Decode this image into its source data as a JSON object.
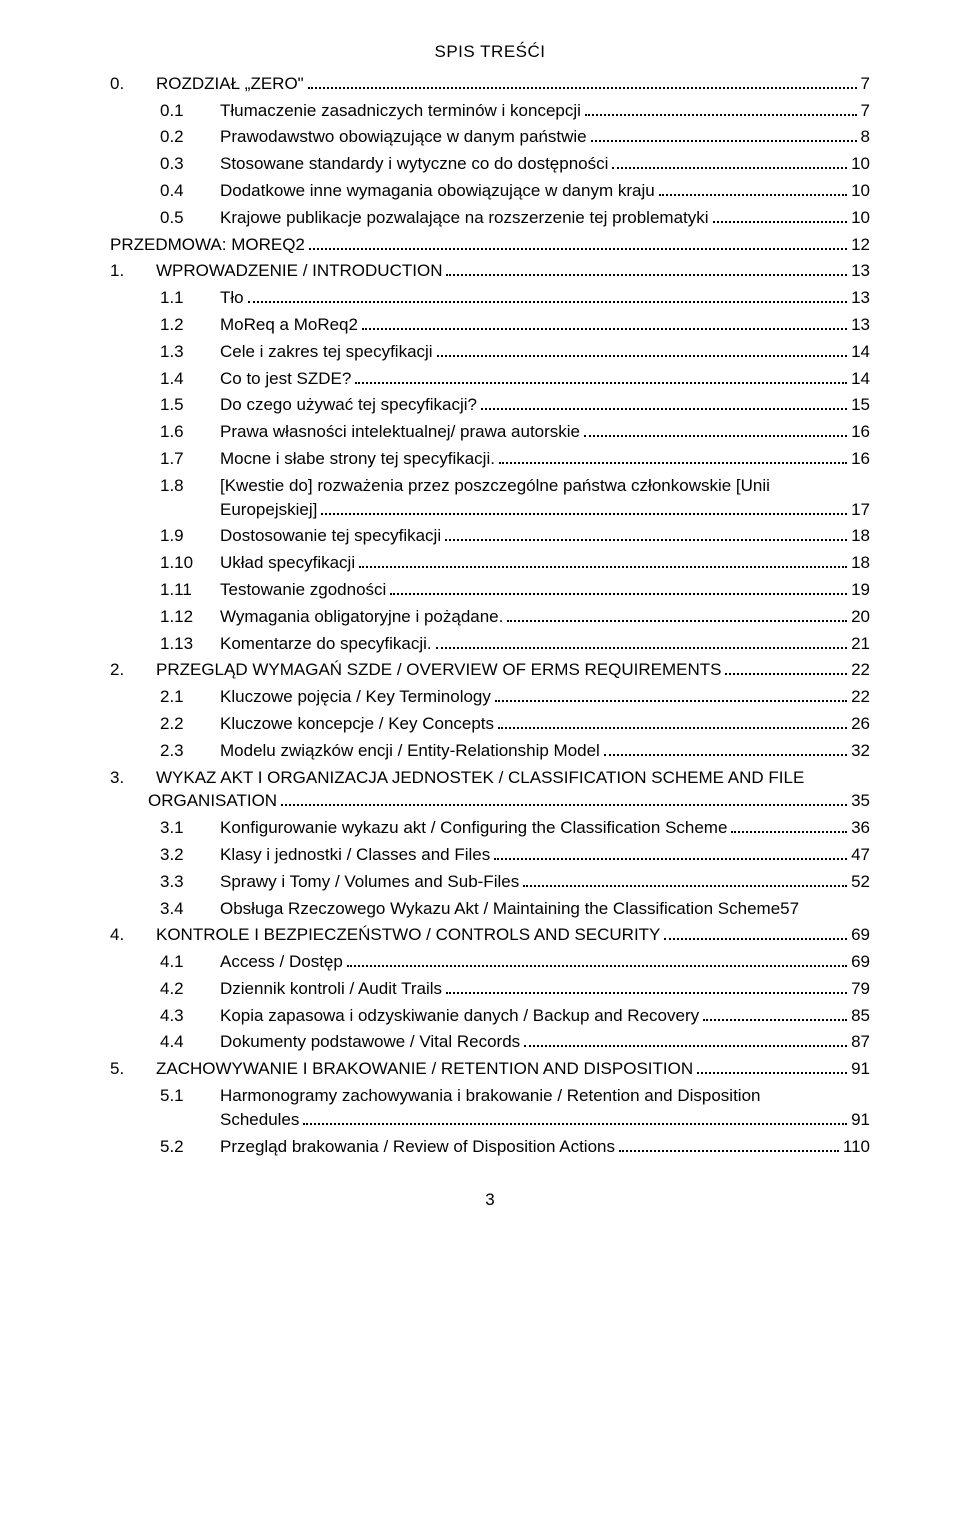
{
  "title": "SPIS TREŚĆI",
  "page_number": "3",
  "typography": {
    "font_family": "Arial",
    "font_size_pt": 12,
    "color": "#000000",
    "background": "#ffffff"
  },
  "entries": [
    {
      "level": 0,
      "num": "0.",
      "label": "ROZDZIAŁ „ZERO\"",
      "page": "7"
    },
    {
      "level": 1,
      "num": "0.1",
      "label": "Tłumaczenie zasadniczych terminów i koncepcji",
      "page": "7"
    },
    {
      "level": 1,
      "num": "0.2",
      "label": "Prawodawstwo obowiązujące w danym państwie",
      "page": "8"
    },
    {
      "level": 1,
      "num": "0.3",
      "label": "Stosowane standardy i wytyczne co do dostępności",
      "page": "10"
    },
    {
      "level": 1,
      "num": "0.4",
      "label": "Dodatkowe inne wymagania obowiązujące w danym kraju",
      "page": "10"
    },
    {
      "level": 1,
      "num": "0.5",
      "label": "Krajowe publikacje pozwalające na rozszerzenie tej problematyki",
      "page": "10"
    },
    {
      "level": 0,
      "num": "",
      "label": "PRZEDMOWA: MOREQ2",
      "page": "12"
    },
    {
      "level": 0,
      "num": "1.",
      "label": "WPROWADZENIE / INTRODUCTION",
      "page": "13"
    },
    {
      "level": 1,
      "num": "1.1",
      "label": "Tło",
      "page": "13"
    },
    {
      "level": 1,
      "num": "1.2",
      "label": "MoReq a MoReq2",
      "page": "13"
    },
    {
      "level": 1,
      "num": "1.3",
      "label": "Cele i zakres tej specyfikacji",
      "page": "14"
    },
    {
      "level": 1,
      "num": "1.4",
      "label": "Co to jest SZDE?",
      "page": "14"
    },
    {
      "level": 1,
      "num": "1.5",
      "label": "Do czego używać tej specyfikacji?",
      "page": "15"
    },
    {
      "level": 1,
      "num": "1.6",
      "label": "Prawa własności intelektualnej/ prawa autorskie",
      "page": "16"
    },
    {
      "level": 1,
      "num": "1.7",
      "label": "Mocne i słabe strony tej specyfikacji.",
      "page": "16"
    },
    {
      "level": 1,
      "num": "1.8",
      "label_line1": "[Kwestie do] rozważenia przez poszczególne państwa członkowskie [Unii",
      "label_line2": "Europejskiej]",
      "page": "17",
      "wrap": true
    },
    {
      "level": 1,
      "num": "1.9",
      "label": "Dostosowanie tej specyfikacji",
      "page": "18"
    },
    {
      "level": 1,
      "num": "1.10",
      "label": "Układ specyfikacji",
      "page": "18"
    },
    {
      "level": 1,
      "num": "1.11",
      "label": "Testowanie zgodności",
      "page": "19"
    },
    {
      "level": 1,
      "num": "1.12",
      "label": "Wymagania obligatoryjne i pożądane.",
      "page": "20"
    },
    {
      "level": 1,
      "num": "1.13",
      "label": "Komentarze do specyfikacji.",
      "page": "21"
    },
    {
      "level": 0,
      "num": "2.",
      "label": "PRZEGLĄD WYMAGAŃ SZDE / OVERVIEW OF ERMS REQUIREMENTS",
      "page": "22"
    },
    {
      "level": 1,
      "num": "2.1",
      "label": "Kluczowe pojęcia / Key Terminology",
      "page": "22"
    },
    {
      "level": 1,
      "num": "2.2",
      "label": "Kluczowe koncepcje / Key Concepts",
      "page": "26"
    },
    {
      "level": 1,
      "num": "2.3",
      "label": "Modelu związków encji / Entity-Relationship Model",
      "page": "32"
    },
    {
      "level": 0,
      "num": "3.",
      "label_line1": "WYKAZ AKT I ORGANIZACJA JEDNOSTEK / CLASSIFICATION SCHEME AND FILE",
      "label_line2": "ORGANISATION",
      "page": "35",
      "wrap": true,
      "wrap_indent": 38
    },
    {
      "level": 1,
      "num": "3.1",
      "label": "Konfigurowanie wykazu akt / Configuring the Classification Scheme",
      "page": "36"
    },
    {
      "level": 1,
      "num": "3.2",
      "label": "Klasy i jednostki / Classes and Files",
      "page": "47"
    },
    {
      "level": 1,
      "num": "3.3",
      "label": "Sprawy i Tomy / Volumes and Sub-Files",
      "page": "52"
    },
    {
      "level": 1,
      "num": "3.4",
      "label": "Obsługa Rzeczowego Wykazu Akt / Maintaining the Classification Scheme",
      "page": "57",
      "nodots": true
    },
    {
      "level": 0,
      "num": "4.",
      "label": "KONTROLE I BEZPIECZEŃSTWO / CONTROLS AND SECURITY",
      "page": "69"
    },
    {
      "level": 1,
      "num": "4.1",
      "label": "Access / Dostęp",
      "page": "69"
    },
    {
      "level": 1,
      "num": "4.2",
      "label": "Dziennik kontroli / Audit Trails",
      "page": "79"
    },
    {
      "level": 1,
      "num": "4.3",
      "label": "Kopia zapasowa i odzyskiwanie danych / Backup and Recovery",
      "page": "85"
    },
    {
      "level": 1,
      "num": "4.4",
      "label": "Dokumenty podstawowe / Vital Records",
      "page": "87"
    },
    {
      "level": 0,
      "num": "5.",
      "label": "ZACHOWYWANIE I BRAKOWANIE / RETENTION AND DISPOSITION",
      "page": "91"
    },
    {
      "level": 1,
      "num": "5.1",
      "label_line1": "Harmonogramy zachowywania i brakowanie / Retention and Disposition",
      "label_line2": "Schedules",
      "page": "91",
      "wrap": true
    },
    {
      "level": 1,
      "num": "5.2",
      "label": "Przegląd brakowania / Review of Disposition Actions",
      "page": "110"
    }
  ]
}
